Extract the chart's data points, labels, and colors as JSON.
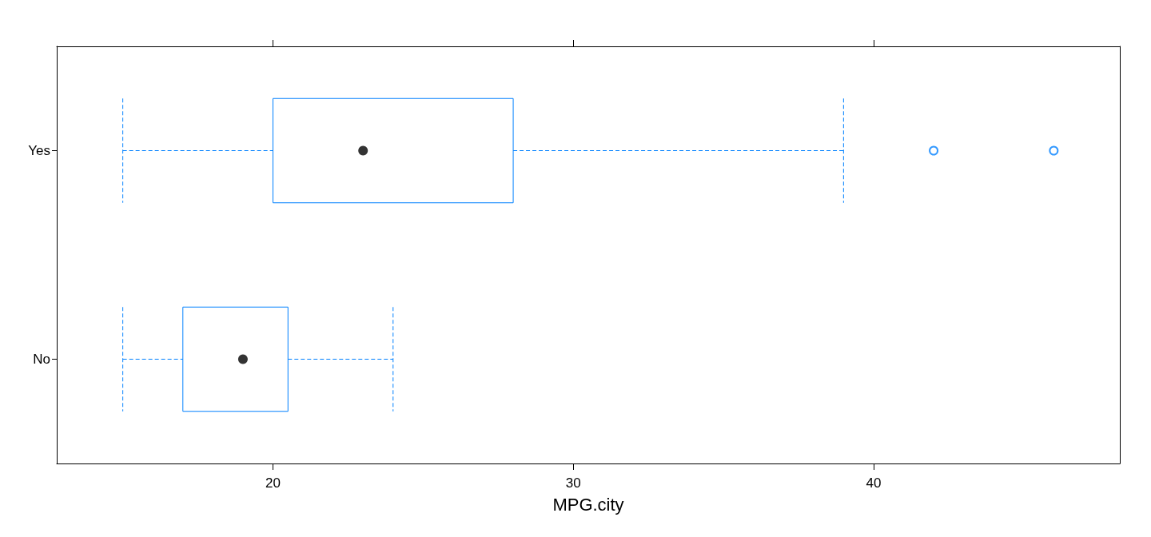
{
  "chart_data": {
    "type": "box",
    "orientation": "horizontal",
    "xlabel": "MPG.city",
    "categories": [
      "Yes",
      "No"
    ],
    "xlim": [
      12.8,
      48.2
    ],
    "xticks": [
      20,
      30,
      40
    ],
    "series": [
      {
        "color": "#0080ff",
        "line_style": "dashed",
        "boxes": [
          {
            "low": 15,
            "q1": 20,
            "median": 23,
            "q3": 28,
            "high": 39,
            "outliers": [
              42,
              46
            ]
          },
          {
            "low": 15,
            "q1": 17,
            "median": 19,
            "q3": 20.5,
            "high": 24
          }
        ]
      }
    ]
  }
}
